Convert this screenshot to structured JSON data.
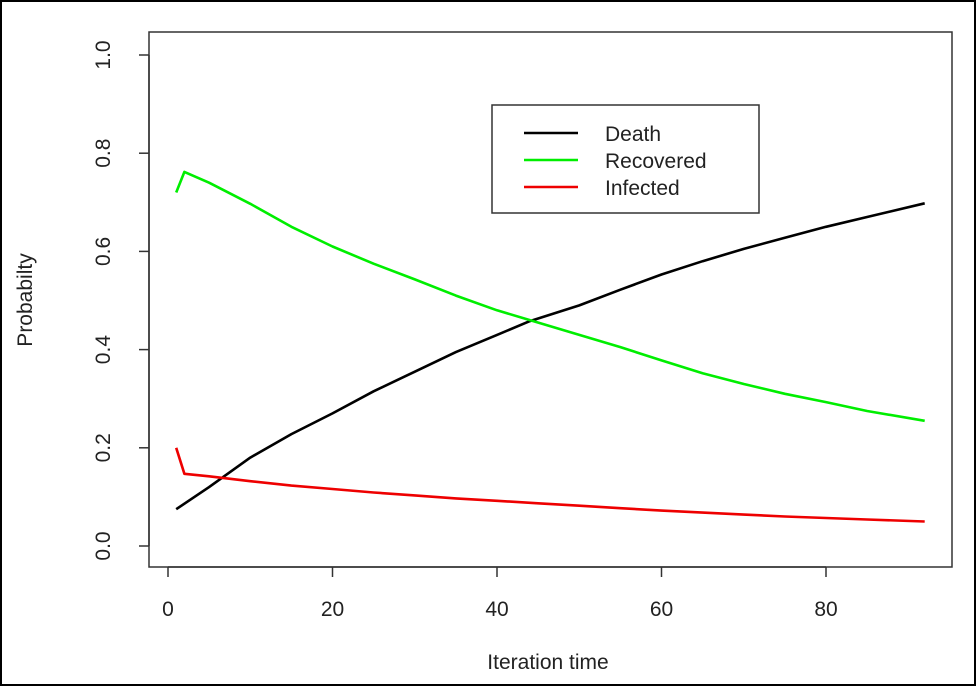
{
  "chart_data": {
    "type": "line",
    "title": "",
    "xlabel": "Iteration time",
    "ylabel": "Probabilty",
    "xlim": [
      0,
      92
    ],
    "ylim": [
      0,
      1
    ],
    "x_ticks": [
      "0",
      "20",
      "40",
      "60",
      "80"
    ],
    "x_tick_values": [
      0,
      20,
      40,
      60,
      80
    ],
    "y_ticks": [
      "0.0",
      "0.2",
      "0.4",
      "0.6",
      "0.8",
      "1.0"
    ],
    "y_tick_values": [
      0,
      0.2,
      0.4,
      0.6,
      0.8,
      1.0
    ],
    "grid": false,
    "legend_position": "top-right",
    "series": [
      {
        "name": "Death",
        "color": "#000000",
        "x": [
          1,
          5,
          10,
          15,
          20,
          25,
          30,
          35,
          40,
          44,
          50,
          55,
          60,
          65,
          70,
          75,
          80,
          85,
          92
        ],
        "y": [
          0.075,
          0.12,
          0.18,
          0.228,
          0.27,
          0.315,
          0.355,
          0.395,
          0.43,
          0.458,
          0.49,
          0.522,
          0.553,
          0.58,
          0.605,
          0.628,
          0.65,
          0.67,
          0.698
        ]
      },
      {
        "name": "Recovered",
        "color": "#00ee00",
        "x": [
          1,
          2,
          5,
          10,
          15,
          20,
          25,
          30,
          35,
          40,
          44,
          50,
          55,
          60,
          65,
          70,
          75,
          80,
          85,
          92
        ],
        "y": [
          0.72,
          0.762,
          0.74,
          0.697,
          0.65,
          0.61,
          0.575,
          0.543,
          0.51,
          0.48,
          0.46,
          0.43,
          0.405,
          0.378,
          0.352,
          0.33,
          0.31,
          0.293,
          0.275,
          0.255
        ]
      },
      {
        "name": "Infected",
        "color": "#ee0000",
        "x": [
          1,
          2,
          5,
          10,
          15,
          20,
          25,
          30,
          35,
          40,
          45,
          50,
          55,
          60,
          65,
          70,
          75,
          80,
          85,
          92
        ],
        "y": [
          0.2,
          0.147,
          0.142,
          0.132,
          0.123,
          0.116,
          0.109,
          0.103,
          0.097,
          0.092,
          0.087,
          0.082,
          0.077,
          0.072,
          0.068,
          0.064,
          0.06,
          0.057,
          0.054,
          0.05
        ]
      }
    ]
  }
}
